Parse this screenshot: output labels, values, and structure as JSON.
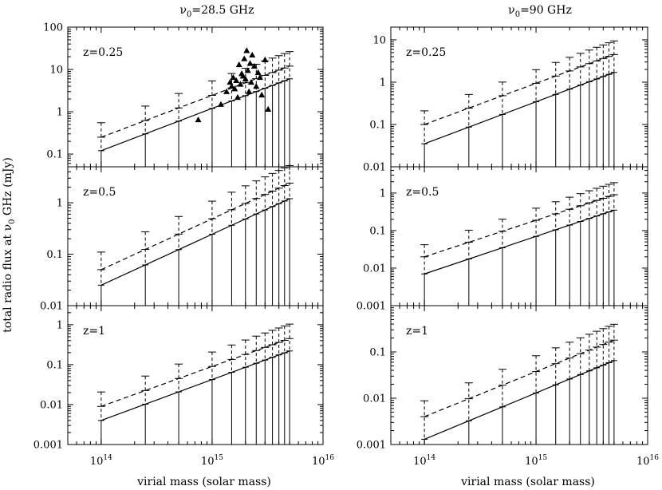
{
  "chart_data": {
    "type": "line",
    "ylabel_main": "total radio flux at ",
    "ylabel_nu": "ν",
    "ylabel_sub": "0",
    "ylabel_tail": " GHz (mJy)",
    "xlabel": "virial mass (solar mass)",
    "x_tick_labels": [
      {
        "base": "10",
        "exp": "14",
        "value": 100000000000000.0
      },
      {
        "base": "10",
        "exp": "15",
        "value": 1000000000000000.0
      },
      {
        "base": "10",
        "exp": "16",
        "value": 1e+16
      }
    ],
    "xlim": [
      50000000000000.0,
      1e+16
    ],
    "masses": [
      100000000000000.0,
      250000000000000.0,
      500000000000000.0,
      1000000000000000.0,
      1500000000000000.0,
      2000000000000000.0,
      2500000000000000.0,
      3000000000000000.0,
      3500000000000000.0,
      4000000000000000.0,
      4500000000000000.0,
      5000000000000000.0
    ],
    "columns": [
      {
        "nu": "ν",
        "sub": "0",
        "rest": "=28.5 GHz"
      },
      {
        "nu": "ν",
        "sub": "0",
        "rest": "=90 GHz"
      }
    ],
    "panels": [
      {
        "id": "z025_28",
        "label": "z=0.25",
        "col": 0,
        "row": 0,
        "ylim": [
          0.05,
          100
        ],
        "y_ticks": [
          {
            "v": 0.1,
            "t": "0.1"
          },
          {
            "v": 1,
            "t": "1"
          },
          {
            "v": 10,
            "t": "10"
          },
          {
            "v": 100,
            "t": "100"
          }
        ],
        "solid_lo": 0.12,
        "solid_hi": 6.0,
        "dashed_lo": 0.25,
        "dashed_hi": 12.0,
        "err_top_factor": 2.2,
        "observed": [
          [
            750000000000000.0,
            0.65
          ],
          [
            1200000000000000.0,
            1.5
          ],
          [
            1350000000000000.0,
            3.0
          ],
          [
            1450000000000000.0,
            5.0
          ],
          [
            1500000000000000.0,
            4.0
          ],
          [
            1550000000000000.0,
            6.5
          ],
          [
            1600000000000000.0,
            3.5
          ],
          [
            1650000000000000.0,
            5.5
          ],
          [
            1700000000000000.0,
            2.2
          ],
          [
            1750000000000000.0,
            13.0
          ],
          [
            1800000000000000.0,
            4.5
          ],
          [
            1850000000000000.0,
            8.0
          ],
          [
            1900000000000000.0,
            7.0
          ],
          [
            1950000000000000.0,
            18.0
          ],
          [
            2000000000000000.0,
            6.0
          ],
          [
            2050000000000000.0,
            28.0
          ],
          [
            2100000000000000.0,
            9.5
          ],
          [
            2150000000000000.0,
            3.0
          ],
          [
            2200000000000000.0,
            14.0
          ],
          [
            2250000000000000.0,
            5.0
          ],
          [
            2300000000000000.0,
            22.0
          ],
          [
            2400000000000000.0,
            12.0
          ],
          [
            2500000000000000.0,
            4.0
          ],
          [
            2600000000000000.0,
            8.5
          ],
          [
            2700000000000000.0,
            6.5
          ],
          [
            2800000000000000.0,
            2.5
          ],
          [
            3000000000000000.0,
            17.0
          ],
          [
            3200000000000000.0,
            1.15
          ]
        ]
      },
      {
        "id": "z05_28",
        "label": "z=0.5",
        "col": 0,
        "row": 1,
        "ylim": [
          0.01,
          5
        ],
        "y_ticks": [
          {
            "v": 0.01,
            "t": "0.01"
          },
          {
            "v": 0.1,
            "t": "0.1"
          },
          {
            "v": 1,
            "t": "1"
          }
        ],
        "solid_lo": 0.025,
        "solid_hi": 1.2,
        "dashed_lo": 0.05,
        "dashed_hi": 2.4,
        "err_top_factor": 2.2
      },
      {
        "id": "z1_28",
        "label": "z=1",
        "col": 0,
        "row": 2,
        "ylim": [
          0.001,
          3
        ],
        "y_ticks": [
          {
            "v": 0.001,
            "t": "0.001"
          },
          {
            "v": 0.01,
            "t": "0.01"
          },
          {
            "v": 0.1,
            "t": "0.1"
          },
          {
            "v": 1,
            "t": "1"
          }
        ],
        "solid_lo": 0.004,
        "solid_hi": 0.22,
        "dashed_lo": 0.009,
        "dashed_hi": 0.45,
        "err_top_factor": 2.3
      },
      {
        "id": "z025_90",
        "label": "z=0.25",
        "col": 1,
        "row": 0,
        "ylim": [
          0.01,
          20
        ],
        "y_ticks": [
          {
            "v": 0.01,
            "t": "0.01"
          },
          {
            "v": 0.1,
            "t": "0.1"
          },
          {
            "v": 1,
            "t": "1"
          },
          {
            "v": 10,
            "t": "10"
          }
        ],
        "solid_lo": 0.035,
        "solid_hi": 1.7,
        "dashed_lo": 0.1,
        "dashed_hi": 4.5,
        "err_top_factor": 2.1
      },
      {
        "id": "z05_90",
        "label": "z=0.5",
        "col": 1,
        "row": 1,
        "ylim": [
          0.001,
          5
        ],
        "y_ticks": [
          {
            "v": 0.001,
            "t": "0.001"
          },
          {
            "v": 0.01,
            "t": "0.01"
          },
          {
            "v": 0.1,
            "t": "0.1"
          },
          {
            "v": 1,
            "t": "1"
          }
        ],
        "solid_lo": 0.007,
        "solid_hi": 0.35,
        "dashed_lo": 0.02,
        "dashed_hi": 0.9,
        "err_top_factor": 2.1
      },
      {
        "id": "z1_90",
        "label": "z=1",
        "col": 1,
        "row": 2,
        "ylim": [
          0.001,
          1
        ],
        "y_ticks": [
          {
            "v": 0.001,
            "t": "0.001"
          },
          {
            "v": 0.01,
            "t": "0.01"
          },
          {
            "v": 0.1,
            "t": "0.1"
          }
        ],
        "solid_lo": 0.0013,
        "solid_hi": 0.065,
        "dashed_lo": 0.004,
        "dashed_hi": 0.18,
        "err_top_factor": 2.2
      }
    ]
  }
}
